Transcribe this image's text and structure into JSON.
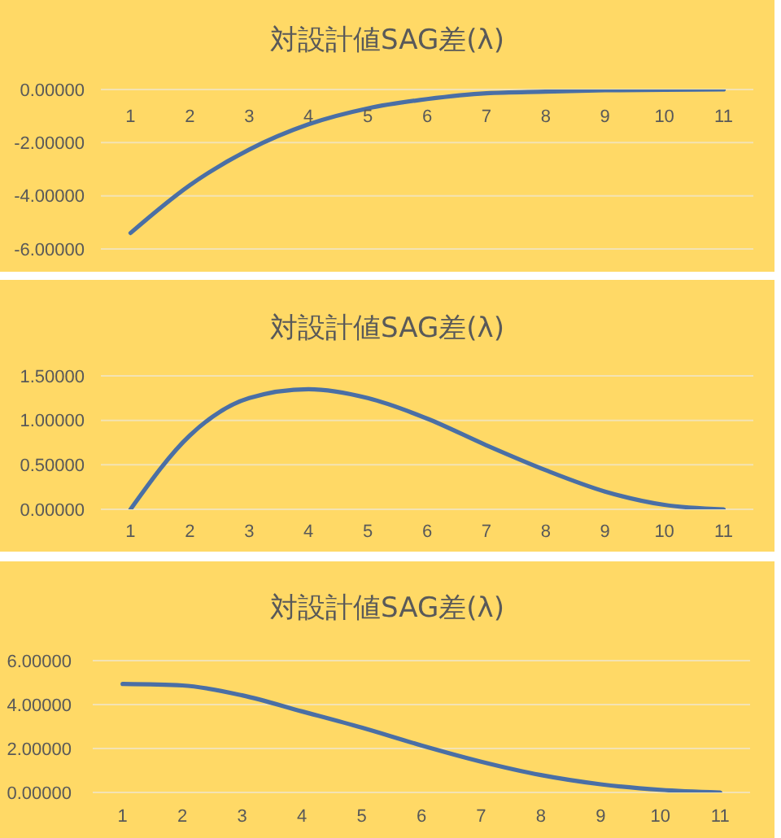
{
  "chart_data": [
    {
      "type": "line",
      "title": "対設計値SAG差(λ)",
      "categories": [
        "1",
        "2",
        "3",
        "4",
        "5",
        "6",
        "7",
        "8",
        "9",
        "10",
        "11"
      ],
      "values": [
        -5.4,
        -3.6,
        -2.26,
        -1.31,
        -0.71,
        -0.36,
        -0.14,
        -0.08,
        -0.03,
        -0.01,
        0
      ],
      "color": "#4a6fa5",
      "ylim": [
        -6,
        0
      ],
      "yticks": [
        {
          "value": -6,
          "label": "-6.00000"
        },
        {
          "value": -4,
          "label": "-4.00000"
        },
        {
          "value": -2,
          "label": "-2.00000"
        },
        {
          "value": 0,
          "label": "0.00000"
        }
      ],
      "grid": "y",
      "marker": "none"
    },
    {
      "type": "line",
      "title": "対設計値SAG差(λ)",
      "categories": [
        "1",
        "2",
        "3",
        "4",
        "5",
        "6",
        "7",
        "8",
        "9",
        "10",
        "11"
      ],
      "values": [
        0,
        0.83,
        1.25,
        1.35,
        1.25,
        1.02,
        0.72,
        0.44,
        0.2,
        0.05,
        0
      ],
      "color": "#4a6fa5",
      "ylim": [
        0,
        1.5
      ],
      "yticks": [
        {
          "value": 0,
          "label": "0.00000"
        },
        {
          "value": 0.5,
          "label": "0.50000"
        },
        {
          "value": 1,
          "label": "1.00000"
        },
        {
          "value": 1.5,
          "label": "1.50000"
        }
      ],
      "grid": "y",
      "marker": "none"
    },
    {
      "type": "line",
      "title": "対設計値SAG差(λ)",
      "categories": [
        "1",
        "2",
        "3",
        "4",
        "5",
        "6",
        "7",
        "8",
        "9",
        "10",
        "11"
      ],
      "values": [
        4.94,
        4.87,
        4.42,
        3.69,
        2.95,
        2.14,
        1.4,
        0.79,
        0.37,
        0.12,
        0
      ],
      "color": "#4a6fa5",
      "ylim": [
        0,
        6
      ],
      "yticks": [
        {
          "value": 0,
          "label": "0.00000"
        },
        {
          "value": 2,
          "label": "2.00000"
        },
        {
          "value": 4,
          "label": "4.00000"
        },
        {
          "value": 6,
          "label": "6.00000"
        }
      ],
      "grid": "y",
      "marker": "none"
    }
  ]
}
